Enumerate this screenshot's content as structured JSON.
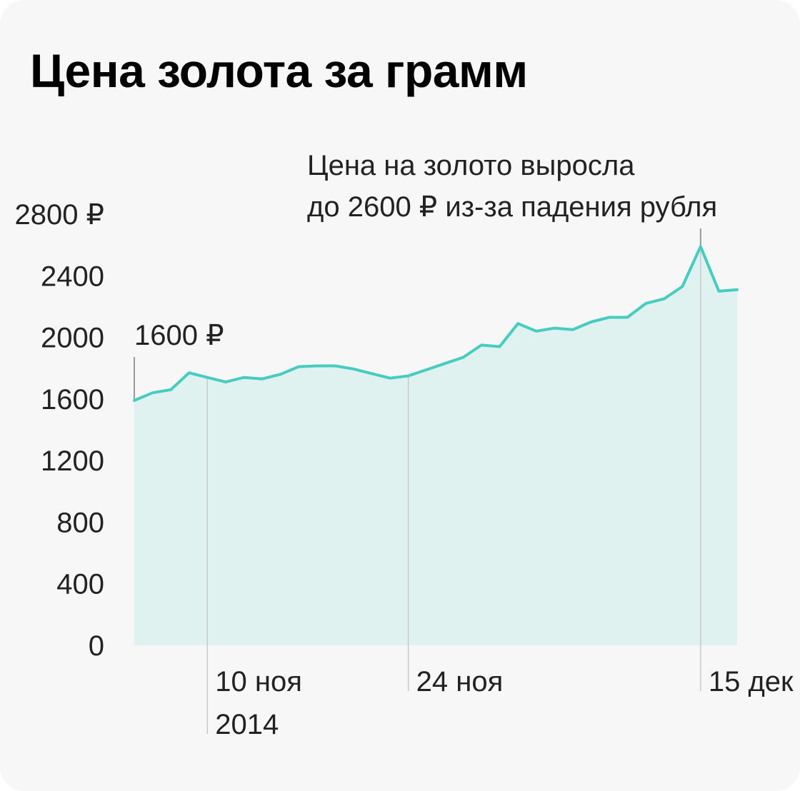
{
  "page": {
    "title": "Цена золота за грамм"
  },
  "chart_data": {
    "type": "area",
    "title": "Цена золота за грамм",
    "ylim": [
      0,
      2800
    ],
    "y_ticks": [
      0,
      400,
      800,
      1200,
      1600,
      2000,
      2400,
      2800
    ],
    "y_tick_labels": [
      "0",
      "400",
      "800",
      "1200",
      "1600",
      "2000",
      "2400",
      "2800 ₽"
    ],
    "x_tick_labels": [
      {
        "index": 4,
        "lines": [
          "10 ноя",
          "2014"
        ]
      },
      {
        "index": 15,
        "lines": [
          "24 ноя"
        ]
      },
      {
        "index": 31,
        "lines": [
          "15 дек"
        ]
      }
    ],
    "values": [
      1590,
      1640,
      1660,
      1770,
      1740,
      1710,
      1740,
      1730,
      1760,
      1810,
      1815,
      1815,
      1795,
      1765,
      1735,
      1750,
      1790,
      1830,
      1870,
      1950,
      1940,
      2090,
      2040,
      2060,
      2050,
      2100,
      2130,
      2130,
      2220,
      2250,
      2330,
      2590,
      2300,
      2310
    ],
    "start_annotation": {
      "index": 0,
      "text": "1600 ₽"
    },
    "peak_annotation": {
      "index": 33,
      "lines": [
        "Цена на золото выросла",
        "до 2600 ₽ из-за падения рубля"
      ]
    },
    "line_color": "#46ccc0",
    "fill_color": "#e0f2ef",
    "grid": false,
    "legend": "none"
  }
}
